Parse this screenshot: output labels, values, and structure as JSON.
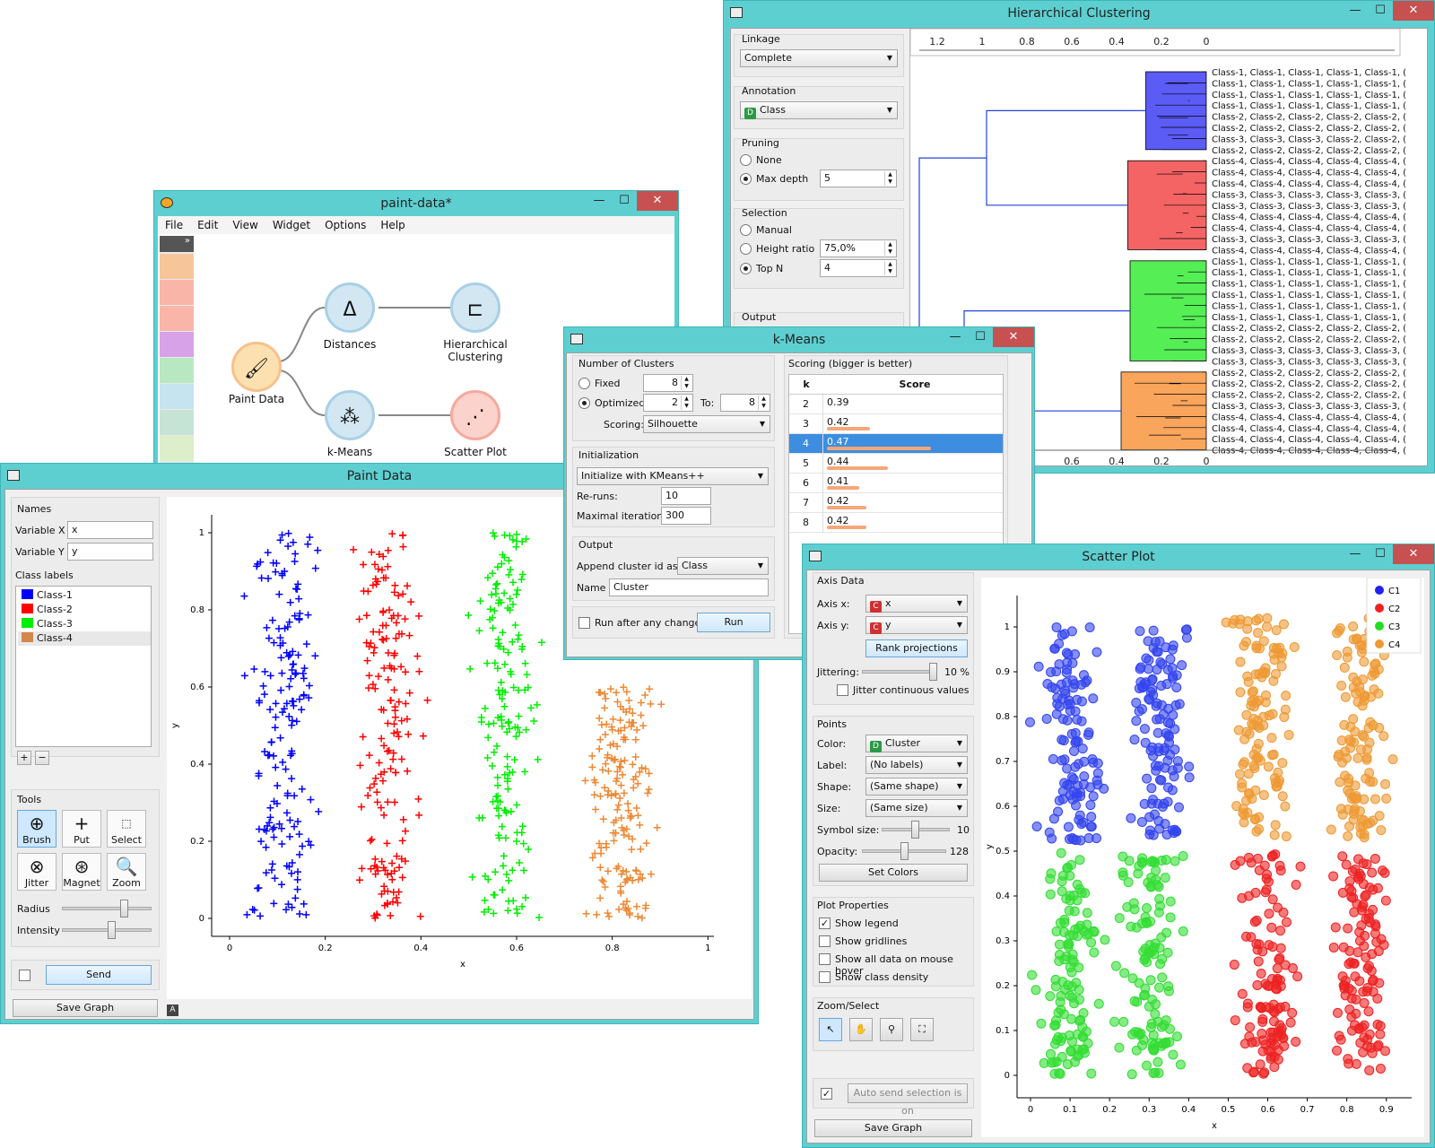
{
  "hc": {
    "title": "Hierarchical Clustering",
    "linkage_label": "Linkage",
    "linkage": "Complete",
    "annotation_label": "Annotation",
    "annotation": "Class",
    "pruning_label": "Pruning",
    "pruning_none": "None",
    "pruning_maxdepth": "Max depth",
    "maxdepth": "5",
    "selection_label": "Selection",
    "sel_manual": "Manual",
    "sel_height": "Height ratio",
    "height_value": "75,0%",
    "sel_topn": "Top N",
    "topn_value": "4",
    "output_label": "Output",
    "axis_ticks": [
      "1.2",
      "1",
      "0.8",
      "0.6",
      "0.4",
      "0.2",
      "0"
    ],
    "bottom_ticks": ".8",
    "rows": [
      "Class-1, Class-1, Class-1, Class-1, Class-1, (",
      "Class-1, Class-1, Class-1, Class-1, Class-1, (",
      "Class-1, Class-1, Class-1, Class-1, Class-1, (",
      "Class-1, Class-1, Class-1, Class-1, Class-1, (",
      "Class-2, Class-2, Class-2, Class-2, Class-2, (",
      "Class-2, Class-2, Class-2, Class-2, Class-2, (",
      "Class-3, Class-3, Class-3, Class-2, Class-2, (",
      "Class-2, Class-2, Class-2, Class-2, Class-2, (",
      "Class-4, Class-4, Class-4, Class-4, Class-4, (",
      "Class-4, Class-4, Class-4, Class-4, Class-4, (",
      "Class-4, Class-4, Class-4, Class-4, Class-4, (",
      "Class-3, Class-3, Class-3, Class-3, Class-3, (",
      "Class-3, Class-3, Class-3, Class-3, Class-3, (",
      "Class-4, Class-4, Class-4, Class-4, Class-4, (",
      "Class-4, Class-4, Class-4, Class-4, Class-4, (",
      "Class-3, Class-3, Class-3, Class-3, Class-3, (",
      "Class-4, Class-4, Class-4, Class-4, Class-4, (",
      "Class-1, Class-1, Class-1, Class-1, Class-1, (",
      "Class-1, Class-1, Class-1, Class-1, Class-1, (",
      "Class-1, Class-1, Class-1, Class-1, Class-1, (",
      "Class-1, Class-1, Class-1, Class-1, Class-1, (",
      "Class-1, Class-1, Class-1, Class-1, Class-1, (",
      "Class-1, Class-1, Class-1, Class-1, Class-1, (",
      "Class-2, Class-2, Class-2, Class-2, Class-2, (",
      "Class-2, Class-2, Class-2, Class-2, Class-2, (",
      "Class-3, Class-3, Class-3, Class-3, Class-3, (",
      "Class-3, Class-3, Class-3, Class-3, Class-3, (",
      "Class-2, Class-2, Class-2, Class-2, Class-2, (",
      "Class-2, Class-2, Class-2, Class-2, Class-2, (",
      "Class-2, Class-2, Class-2, Class-2, Class-2, (",
      "Class-3, Class-3, Class-3, Class-3, Class-3, (",
      "Class-4, Class-4, Class-4, Class-4, Class-4, (",
      "Class-4, Class-4, Class-4, Class-4, Class-4, (",
      "Class-4, Class-4, Class-4, Class-4, Class-4, (",
      "Class-4, Class-4, Class-4, Class-4, Class-4, ("
    ],
    "cluster_colors": [
      "#5b5bf5",
      "#f46464",
      "#55ee55",
      "#f9a55c"
    ]
  },
  "paintdata_canvas": {
    "title": "paint-data*",
    "menu": [
      "File",
      "Edit",
      "View",
      "Widget",
      "Options",
      "Help"
    ],
    "nodes": {
      "paint": "Paint Data",
      "distances": "Distances",
      "hier": "Hierarchical\nClustering",
      "kmeans": "k-Means",
      "scatter": "Scatter Plot"
    }
  },
  "km": {
    "title": "k-Means",
    "nclusters_label": "Number of Clusters",
    "fixed_label": "Fixed",
    "fixed_value": "8",
    "optimized_label": "Optimized",
    "from_value": "2",
    "to_label": "To:",
    "to_value": "8",
    "scoring_label": "Scoring:",
    "scoring": "Silhouette",
    "init_label": "Initialization",
    "init": "Initialize with KMeans++",
    "reruns_label": "Re-runs:",
    "reruns": "10",
    "maxiter_label": "Maximal iterations:",
    "maxiter": "300",
    "output_label": "Output",
    "append_label": "Append cluster id as",
    "append": "Class",
    "name_label": "Name",
    "name": "Cluster",
    "run_after_label": "Run after any change",
    "run_label": "Run",
    "score_group": "Scoring (bigger is better)",
    "col_k": "k",
    "col_score": "Score",
    "scores": [
      {
        "k": "2",
        "score": "0.39",
        "fill": 0.0
      },
      {
        "k": "3",
        "score": "0.42",
        "fill": 0.41
      },
      {
        "k": "4",
        "score": "0.47",
        "fill": 1.0,
        "selected": true
      },
      {
        "k": "5",
        "score": "0.44",
        "fill": 0.59
      },
      {
        "k": "6",
        "score": "0.41",
        "fill": 0.31
      },
      {
        "k": "7",
        "score": "0.42",
        "fill": 0.38
      },
      {
        "k": "8",
        "score": "0.42",
        "fill": 0.38
      }
    ]
  },
  "pd": {
    "title": "Paint Data",
    "names_label": "Names",
    "varx_label": "Variable X",
    "varx": "x",
    "vary_label": "Variable Y",
    "vary": "y",
    "classlabels_label": "Class labels",
    "classes": [
      {
        "name": "Class-1",
        "color": "#0000ff"
      },
      {
        "name": "Class-2",
        "color": "#ff0000"
      },
      {
        "name": "Class-3",
        "color": "#00ee00"
      },
      {
        "name": "Class-4",
        "color": "#d4874a"
      }
    ],
    "plus": "+",
    "minus": "−",
    "tools_label": "Tools",
    "tools": [
      "Brush",
      "Put",
      "Select",
      "Jitter",
      "Magnet",
      "Zoom"
    ],
    "radius_label": "Radius",
    "intensity_label": "Intensity",
    "send_label": "Send",
    "save_label": "Save Graph",
    "xlabel": "x",
    "ylabel": "y",
    "xticks": [
      "0",
      "0.2",
      "0.4",
      "0.6",
      "0.8",
      "1"
    ],
    "yticks": [
      "0",
      "0.2",
      "0.4",
      "0.6",
      "0.8",
      "1"
    ]
  },
  "sp": {
    "title": "Scatter Plot",
    "axis_label": "Axis Data",
    "axisx_label": "Axis x:",
    "axisx": "x",
    "axisy_label": "Axis y:",
    "axisy": "y",
    "rank_label": "Rank projections",
    "jitter_label": "Jittering:",
    "jitter_value": "10 %",
    "jitter_cont": "Jitter continuous values",
    "points_label": "Points",
    "color_label": "Color:",
    "color": "Cluster",
    "label_label": "Label:",
    "label": "(No labels)",
    "shape_label": "Shape:",
    "shape": "(Same shape)",
    "size_label": "Size:",
    "size": "(Same size)",
    "symsize_label": "Symbol size:",
    "symsize": "10",
    "opacity_label": "Opacity:",
    "opacity": "128",
    "setcolors_label": "Set Colors",
    "plotprops_label": "Plot Properties",
    "show_legend": "Show legend",
    "show_grid": "Show gridlines",
    "show_all": "Show all data on mouse hover",
    "show_density": "Show class density",
    "zoom_label": "Zoom/Select",
    "auto_send": "Auto send selection is on",
    "save_label": "Save Graph",
    "xlabel": "x",
    "ylabel": "y",
    "xticks": [
      "0",
      "0.1",
      "0.2",
      "0.3",
      "0.4",
      "0.5",
      "0.6",
      "0.7",
      "0.8",
      "0.9"
    ],
    "yticks": [
      "0",
      "0.1",
      "0.2",
      "0.3",
      "0.4",
      "0.5",
      "0.6",
      "0.7",
      "0.8",
      "0.9",
      "1"
    ],
    "legend": [
      {
        "name": "C1",
        "color": "#2222ee"
      },
      {
        "name": "C2",
        "color": "#ee2222"
      },
      {
        "name": "C3",
        "color": "#22dd22"
      },
      {
        "name": "C4",
        "color": "#ee9933"
      }
    ]
  }
}
